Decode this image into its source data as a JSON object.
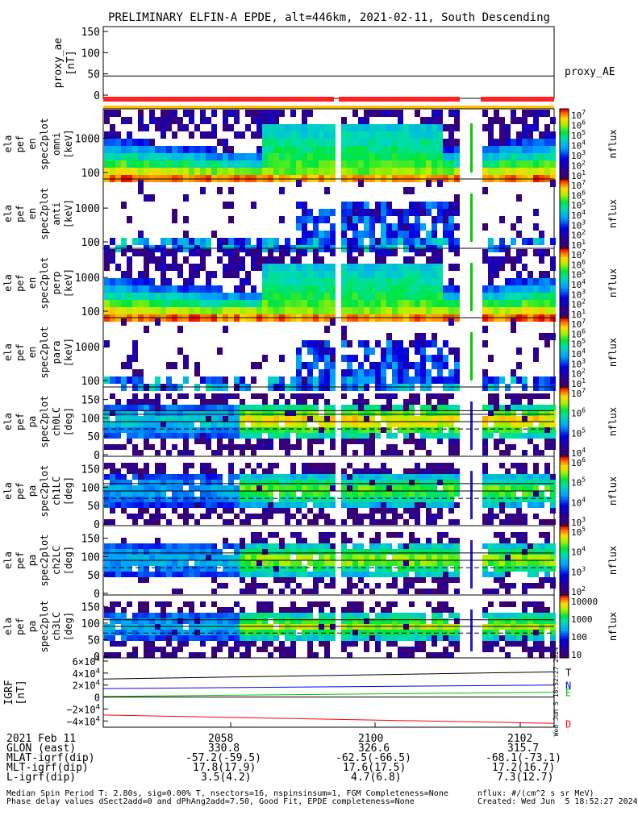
{
  "title": "PRELIMINARY ELFIN-A EPDE, alt=446km, 2021-02-11, South Descending",
  "chart_data": {
    "type": "heatmap",
    "title": "PRELIMINARY ELFIN-A EPDE, alt=446km, 2021-02-11, South Descending",
    "x_axis": {
      "range_minutes": [
        "20:56:45",
        "21:02:45"
      ],
      "tick_labels": [
        "2058",
        "2100",
        "2102"
      ],
      "data_gaps": [
        "20:59:50-20:59:57",
        "21:01:13-21:01:23"
      ]
    },
    "panels": [
      {
        "name": "proxy_ae",
        "ylabel": [
          "proxy_ae",
          "[nT]"
        ],
        "ticks": [
          "150",
          "100",
          "50",
          "0"
        ],
        "ylim": [
          0,
          150
        ],
        "legend": "proxy_AE",
        "line_value": 45,
        "scale": "linear"
      },
      {
        "name": "ela_pef_en_spec2plot_omni",
        "ylabel": [
          "ela",
          "pef",
          "en",
          "spec2plot",
          "omni",
          "[keV]"
        ],
        "ticks": [
          "1000",
          "100"
        ],
        "ylim": [
          60,
          7000
        ],
        "scale": "log",
        "colorbar": {
          "label": "nflux",
          "max": "10^7",
          "min": "10^1",
          "ticks": [
            "10^7",
            "10^6",
            "10^5",
            "10^4",
            "10^3",
            "10^2",
            "10^1"
          ]
        }
      },
      {
        "name": "ela_pef_en_spec2plot_anti",
        "ylabel": [
          "ela",
          "pef",
          "en",
          "spec2plot",
          "anti",
          "[keV]"
        ],
        "ticks": [
          "1000",
          "100"
        ],
        "ylim": [
          60,
          7000
        ],
        "scale": "log",
        "colorbar": {
          "label": "nflux",
          "ticks": [
            "10^7",
            "10^6",
            "10^5",
            "10^4",
            "10^3",
            "10^2",
            "10^1"
          ]
        }
      },
      {
        "name": "ela_pef_en_spec2plot_perp",
        "ylabel": [
          "ela",
          "pef",
          "en",
          "spec2plot",
          "perp",
          "[keV]"
        ],
        "ticks": [
          "1000",
          "100"
        ],
        "ylim": [
          60,
          7000
        ],
        "scale": "log",
        "colorbar": {
          "label": "nflux",
          "ticks": [
            "10^7",
            "10^6",
            "10^5",
            "10^4",
            "10^3",
            "10^2",
            "10^1"
          ]
        }
      },
      {
        "name": "ela_pef_en_spec2plot_para",
        "ylabel": [
          "ela",
          "pef",
          "en",
          "spec2plot",
          "para",
          "[keV]"
        ],
        "ticks": [
          "1000",
          "100"
        ],
        "ylim": [
          60,
          7000
        ],
        "scale": "log",
        "colorbar": {
          "label": "nflux",
          "ticks": [
            "10^7",
            "10^6",
            "10^5",
            "10^4",
            "10^3",
            "10^2",
            "10^1"
          ]
        }
      },
      {
        "name": "ela_pef_pa_spec2plot_ch0LC",
        "ylabel": [
          "ela",
          "pef",
          "pa",
          "spec2plot",
          "ch0LC",
          "[deg]"
        ],
        "ticks": [
          "150",
          "100",
          "50",
          "0"
        ],
        "ylim": [
          0,
          180
        ],
        "scale": "linear",
        "ref_lines": [
          90,
          110,
          120
        ],
        "dashed": [
          70
        ],
        "colorbar": {
          "label": "nflux",
          "ticks": [
            "10^7",
            "10^6",
            "10^5",
            "10^4"
          ]
        }
      },
      {
        "name": "ela_pef_pa_spec2plot_ch1LC",
        "ylabel": [
          "ela",
          "pef",
          "pa",
          "spec2plot",
          "ch1LC",
          "[deg]"
        ],
        "ticks": [
          "150",
          "100",
          "50",
          "0"
        ],
        "ylim": [
          0,
          180
        ],
        "scale": "linear",
        "ref_lines": [
          90,
          110
        ],
        "dashed": [
          70
        ],
        "colorbar": {
          "label": "nflux",
          "ticks": [
            "10^6",
            "10^5",
            "10^4",
            "10^3"
          ]
        }
      },
      {
        "name": "ela_pef_pa_spec2plot_ch2LC",
        "ylabel": [
          "ela",
          "pef",
          "pa",
          "spec2plot",
          "ch2LC",
          "[deg]"
        ],
        "ticks": [
          "150",
          "100",
          "50",
          "0"
        ],
        "ylim": [
          0,
          180
        ],
        "scale": "linear",
        "ref_lines": [
          90,
          110
        ],
        "dashed": [
          70
        ],
        "colorbar": {
          "label": "nflux",
          "ticks": [
            "10^5",
            "10^4",
            "10^3",
            "10^2"
          ]
        }
      },
      {
        "name": "ela_pef_pa_spec2plot_ch3LC",
        "ylabel": [
          "ela",
          "pef",
          "pa",
          "spec2plot",
          "ch3LC",
          "[deg]"
        ],
        "ticks": [
          "150",
          "100",
          "50",
          "0"
        ],
        "ylim": [
          0,
          180
        ],
        "scale": "linear",
        "ref_lines": [
          90,
          110
        ],
        "dashed": [
          70
        ],
        "colorbar": {
          "label": "nflux",
          "ticks": [
            "10000",
            "1000",
            "100",
            "10"
          ]
        }
      },
      {
        "name": "IGRF",
        "ylabel": [
          "IGRF",
          "[nT]"
        ],
        "ticks": [
          "6×10^4",
          "4×10^4",
          "2×10^4",
          "0",
          "−2×10^4",
          "−4×10^4"
        ],
        "ylim": [
          -45000,
          60000
        ],
        "scale": "linear",
        "series": [
          {
            "name": "T",
            "color": "#000000",
            "values": [
              30000,
              42000
            ]
          },
          {
            "name": "N",
            "color": "#0000ff",
            "values": [
              14000,
              20000
            ]
          },
          {
            "name": "E",
            "color": "#00c000",
            "values": [
              1000,
              8000
            ]
          },
          {
            "name": "",
            "color": "#000000",
            "values": [
              0,
              0
            ]
          },
          {
            "name": "D",
            "color": "#ff0000",
            "values": [
              -30000,
              -44000
            ]
          }
        ]
      }
    ]
  },
  "colors": {
    "bar_red": "#ff2020",
    "bar_yellow": "#ffbe00",
    "igrf_t": "#000000",
    "igrf_n": "#0000ff",
    "igrf_e": "#00c000",
    "igrf_d": "#ff0000"
  },
  "footer": {
    "date": "2021 Feb 11",
    "times": [
      "2058",
      "2100",
      "2102"
    ],
    "rows": [
      {
        "label": "GLON (east)",
        "values": [
          "330.8",
          "326.6",
          "315.7"
        ]
      },
      {
        "label": "MLAT-igrf(dip)",
        "values": [
          "-57.2(-59.5)",
          "-62.5(-66.5)",
          "-68.1(-73.1)"
        ]
      },
      {
        "label": "MLT-igrf(dip)",
        "values": [
          "17.8(17.9)",
          "17.6(17.5)",
          "17.2(16.7)"
        ]
      },
      {
        "label": "L-igrf(dip)",
        "values": [
          "3.5(4.2)",
          "4.7(6.8)",
          "7.3(12.7)"
        ]
      }
    ],
    "notes": [
      "Median Spin Period T: 2.80s, sig=0.00% T, nsectors=16, nspinsinsum=1, FGM Completeness=None",
      "Phase delay values dSect2add=0 and dPhAng2add=7.50, Good Fit, EPDE completeness=None"
    ],
    "units": "nflux: #/(cm^2 s sr MeV)",
    "created": "Created: Wed Jun  5 18:52:27 2024",
    "sidestamp": "Wed Jun  5 18:52:27 2024"
  }
}
